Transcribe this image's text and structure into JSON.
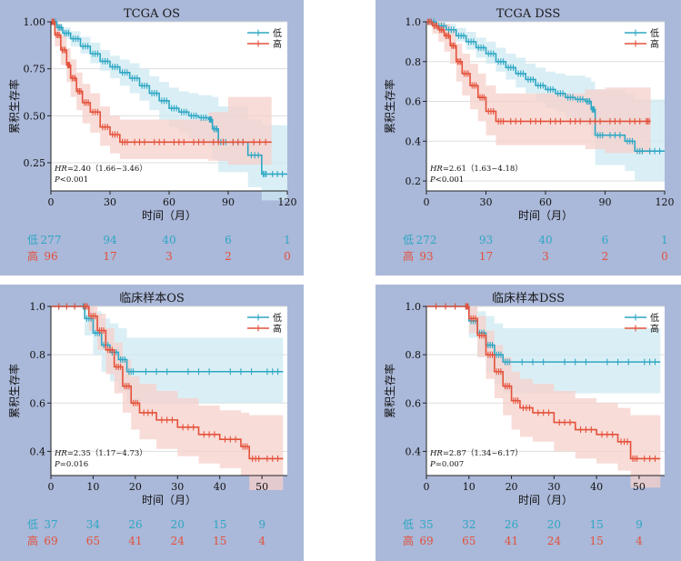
{
  "colors": {
    "low": "#2ea7c4",
    "high": "#e4513a",
    "low_band": "#cde9f2",
    "high_band": "#f6d0cb",
    "panel_bg": "#aab8d9"
  },
  "chart_data": [
    {
      "type": "line",
      "title": "TCGA OS",
      "ylabel": "累积生存率",
      "xlabel": "时间（月）",
      "xlim": [
        0,
        120
      ],
      "ylim": [
        0.1,
        1.0
      ],
      "xticks": [
        "0",
        "30",
        "60",
        "90",
        "120"
      ],
      "yticks": [
        "0.25",
        "0.50",
        "0.75",
        "1.00"
      ],
      "ytick_values": [
        0.25,
        0.5,
        0.75,
        1.0
      ],
      "xtick_values": [
        0,
        30,
        60,
        90,
        120
      ],
      "legend": [
        "低",
        "高"
      ],
      "legend_position": "top-right",
      "hr_label": "HR",
      "hr_text": "=2.40（1.66~3.46）",
      "p_label": "P",
      "p_text": "<0.001",
      "series": [
        {
          "name": "低",
          "x": [
            0,
            3,
            6,
            10,
            15,
            20,
            25,
            30,
            35,
            40,
            45,
            50,
            55,
            60,
            65,
            70,
            75,
            80,
            82,
            85,
            90,
            100,
            107,
            110,
            120
          ],
          "y": [
            1.0,
            0.97,
            0.94,
            0.91,
            0.87,
            0.83,
            0.79,
            0.76,
            0.73,
            0.7,
            0.66,
            0.62,
            0.58,
            0.54,
            0.52,
            0.5,
            0.49,
            0.48,
            0.43,
            0.36,
            0.36,
            0.29,
            0.19,
            0.19,
            0.19
          ],
          "lower": [
            1.0,
            0.95,
            0.91,
            0.87,
            0.83,
            0.78,
            0.74,
            0.7,
            0.66,
            0.62,
            0.58,
            0.53,
            0.48,
            0.44,
            0.41,
            0.38,
            0.36,
            0.34,
            0.27,
            0.2,
            0.2,
            0.12,
            0.05,
            0.05,
            0.05
          ],
          "upper": [
            1.0,
            0.99,
            0.97,
            0.95,
            0.92,
            0.89,
            0.85,
            0.82,
            0.8,
            0.78,
            0.75,
            0.71,
            0.68,
            0.65,
            0.63,
            0.62,
            0.61,
            0.61,
            0.6,
            0.55,
            0.55,
            0.48,
            0.45,
            0.45,
            0.45
          ]
        },
        {
          "name": "高",
          "x": [
            0,
            2,
            5,
            8,
            10,
            13,
            16,
            20,
            25,
            30,
            35,
            40,
            50,
            60,
            70,
            80,
            90,
            100,
            112
          ],
          "y": [
            1.0,
            0.93,
            0.85,
            0.77,
            0.7,
            0.63,
            0.57,
            0.52,
            0.44,
            0.4,
            0.36,
            0.36,
            0.36,
            0.36,
            0.36,
            0.36,
            0.36,
            0.36,
            0.36
          ],
          "lower": [
            1.0,
            0.87,
            0.77,
            0.68,
            0.6,
            0.53,
            0.46,
            0.41,
            0.34,
            0.3,
            0.27,
            0.27,
            0.27,
            0.27,
            0.27,
            0.26,
            0.24,
            0.24,
            0.24
          ],
          "upper": [
            1.0,
            0.99,
            0.93,
            0.86,
            0.8,
            0.73,
            0.67,
            0.62,
            0.55,
            0.5,
            0.48,
            0.48,
            0.48,
            0.48,
            0.48,
            0.52,
            0.6,
            0.6,
            0.6
          ]
        }
      ],
      "risk_table": {
        "low": [
          "277",
          "94",
          "40",
          "6",
          "1"
        ],
        "high": [
          "96",
          "17",
          "3",
          "2",
          "0"
        ]
      }
    },
    {
      "type": "line",
      "title": "TCGA DSS",
      "ylabel": "累积生存率",
      "xlabel": "时间（月）",
      "xlim": [
        0,
        120
      ],
      "ylim": [
        0.15,
        1.0
      ],
      "xticks": [
        "0",
        "30",
        "60",
        "90",
        "120"
      ],
      "yticks": [
        "0.2",
        "0.4",
        "0.6",
        "0.8",
        "1.0"
      ],
      "ytick_values": [
        0.2,
        0.4,
        0.6,
        0.8,
        1.0
      ],
      "xtick_values": [
        0,
        30,
        60,
        90,
        120
      ],
      "legend": [
        "低",
        "高"
      ],
      "legend_position": "top-right",
      "hr_label": "HR",
      "hr_text": "=2.61（1.63~4.18）",
      "p_label": "P",
      "p_text": "<0.001",
      "series": [
        {
          "name": "低",
          "x": [
            0,
            5,
            10,
            15,
            20,
            25,
            30,
            35,
            40,
            45,
            50,
            55,
            60,
            65,
            70,
            75,
            80,
            83,
            85,
            90,
            100,
            105,
            110,
            120
          ],
          "y": [
            1.0,
            0.98,
            0.96,
            0.93,
            0.9,
            0.87,
            0.84,
            0.8,
            0.77,
            0.74,
            0.71,
            0.68,
            0.66,
            0.64,
            0.62,
            0.61,
            0.6,
            0.56,
            0.43,
            0.43,
            0.4,
            0.35,
            0.35,
            0.35
          ],
          "lower": [
            1.0,
            0.96,
            0.93,
            0.9,
            0.86,
            0.82,
            0.79,
            0.75,
            0.71,
            0.67,
            0.64,
            0.6,
            0.57,
            0.55,
            0.52,
            0.5,
            0.48,
            0.42,
            0.28,
            0.28,
            0.25,
            0.2,
            0.2,
            0.2
          ],
          "upper": [
            1.0,
            1.0,
            0.99,
            0.97,
            0.95,
            0.92,
            0.9,
            0.87,
            0.84,
            0.82,
            0.79,
            0.77,
            0.75,
            0.74,
            0.73,
            0.73,
            0.72,
            0.7,
            0.66,
            0.66,
            0.64,
            0.61,
            0.61,
            0.61
          ]
        },
        {
          "name": "高",
          "x": [
            0,
            3,
            6,
            9,
            12,
            15,
            18,
            22,
            26,
            30,
            35,
            40,
            50,
            60,
            70,
            80,
            90,
            100,
            110,
            113
          ],
          "y": [
            1.0,
            0.98,
            0.96,
            0.93,
            0.88,
            0.8,
            0.74,
            0.68,
            0.62,
            0.55,
            0.5,
            0.5,
            0.5,
            0.5,
            0.5,
            0.5,
            0.5,
            0.5,
            0.5,
            0.5
          ],
          "lower": [
            1.0,
            0.94,
            0.9,
            0.85,
            0.79,
            0.7,
            0.63,
            0.56,
            0.5,
            0.43,
            0.38,
            0.38,
            0.38,
            0.38,
            0.38,
            0.36,
            0.34,
            0.34,
            0.34,
            0.34
          ],
          "upper": [
            1.0,
            1.0,
            1.0,
            0.99,
            0.96,
            0.89,
            0.84,
            0.79,
            0.74,
            0.68,
            0.64,
            0.64,
            0.64,
            0.64,
            0.64,
            0.66,
            0.67,
            0.67,
            0.67,
            0.67
          ]
        }
      ],
      "risk_table": {
        "low": [
          "272",
          "93",
          "40",
          "6",
          "1"
        ],
        "high": [
          "93",
          "17",
          "3",
          "2",
          "0"
        ]
      }
    },
    {
      "type": "line",
      "title": "临床样本OS",
      "ylabel": "累积生存率",
      "xlabel": "时间（月）",
      "xlim": [
        0,
        56
      ],
      "ylim": [
        0.3,
        1.0
      ],
      "xticks": [
        "0",
        "10",
        "20",
        "30",
        "40",
        "50"
      ],
      "yticks": [
        "0.4",
        "0.6",
        "0.8",
        "1.0"
      ],
      "ytick_values": [
        0.4,
        0.6,
        0.8,
        1.0
      ],
      "xtick_values": [
        0,
        10,
        20,
        30,
        40,
        50
      ],
      "legend": [
        "低",
        "高"
      ],
      "legend_position": "top-right",
      "hr_label": "HR",
      "hr_text": "=2.35（1.17~4.73）",
      "p_label": "P",
      "p_text": "=0.016",
      "series": [
        {
          "name": "低",
          "x": [
            0,
            7.5,
            8,
            10,
            12,
            14,
            16,
            18,
            20,
            30,
            40,
            50,
            55
          ],
          "y": [
            1.0,
            1.0,
            0.95,
            0.89,
            0.84,
            0.81,
            0.78,
            0.73,
            0.73,
            0.73,
            0.73,
            0.73,
            0.73
          ],
          "lower": [
            1.0,
            1.0,
            0.88,
            0.8,
            0.73,
            0.69,
            0.65,
            0.6,
            0.6,
            0.6,
            0.6,
            0.6,
            0.6
          ],
          "upper": [
            1.0,
            1.0,
            1.0,
            0.98,
            0.95,
            0.93,
            0.91,
            0.87,
            0.87,
            0.87,
            0.87,
            0.87,
            0.87
          ]
        },
        {
          "name": "高",
          "x": [
            0,
            7.5,
            9,
            11,
            13,
            15,
            17,
            19,
            21,
            25,
            30,
            35,
            40,
            45,
            47,
            50,
            55
          ],
          "y": [
            1.0,
            1.0,
            0.96,
            0.9,
            0.82,
            0.75,
            0.67,
            0.6,
            0.56,
            0.53,
            0.5,
            0.47,
            0.45,
            0.42,
            0.37,
            0.37,
            0.37
          ],
          "lower": [
            1.0,
            1.0,
            0.9,
            0.82,
            0.72,
            0.64,
            0.56,
            0.49,
            0.45,
            0.41,
            0.38,
            0.35,
            0.33,
            0.3,
            0.24,
            0.24,
            0.24
          ],
          "upper": [
            1.0,
            1.0,
            1.0,
            0.97,
            0.91,
            0.85,
            0.78,
            0.71,
            0.68,
            0.65,
            0.62,
            0.59,
            0.57,
            0.56,
            0.55,
            0.55,
            0.55
          ]
        }
      ],
      "risk_table": {
        "low": [
          "37",
          "34",
          "26",
          "20",
          "15",
          "9"
        ],
        "high": [
          "69",
          "65",
          "41",
          "24",
          "15",
          "4"
        ]
      }
    },
    {
      "type": "line",
      "title": "临床样本DSS",
      "ylabel": "累积生存率",
      "xlabel": "时间（月）",
      "xlim": [
        0,
        56
      ],
      "ylim": [
        0.3,
        1.0
      ],
      "xticks": [
        "0",
        "10",
        "20",
        "30",
        "40",
        "50"
      ],
      "yticks": [
        "0.4",
        "0.6",
        "0.8",
        "1.0"
      ],
      "ytick_values": [
        0.4,
        0.6,
        0.8,
        1.0
      ],
      "xtick_values": [
        0,
        10,
        20,
        30,
        40,
        50
      ],
      "legend": [
        "低",
        "高"
      ],
      "legend_position": "top-right",
      "hr_label": "HR",
      "hr_text": "=2.87（1.34~6.17）",
      "p_label": "P",
      "p_text": "=0.007",
      "series": [
        {
          "name": "低",
          "x": [
            0,
            9,
            10,
            12,
            14,
            16,
            18,
            20,
            30,
            40,
            50,
            55
          ],
          "y": [
            1.0,
            1.0,
            0.94,
            0.89,
            0.84,
            0.8,
            0.77,
            0.77,
            0.77,
            0.77,
            0.77,
            0.77
          ],
          "lower": [
            1.0,
            1.0,
            0.87,
            0.79,
            0.73,
            0.68,
            0.64,
            0.64,
            0.64,
            0.64,
            0.64,
            0.64
          ],
          "upper": [
            1.0,
            1.0,
            1.0,
            0.98,
            0.96,
            0.93,
            0.91,
            0.91,
            0.91,
            0.91,
            0.91,
            0.91
          ]
        },
        {
          "name": "高",
          "x": [
            0,
            9,
            10,
            12,
            14,
            16,
            18,
            20,
            22,
            25,
            30,
            35,
            40,
            45,
            48,
            50,
            55
          ],
          "y": [
            1.0,
            1.0,
            0.95,
            0.88,
            0.8,
            0.73,
            0.67,
            0.61,
            0.58,
            0.56,
            0.52,
            0.49,
            0.47,
            0.44,
            0.37,
            0.37,
            0.37
          ],
          "lower": [
            1.0,
            1.0,
            0.89,
            0.79,
            0.7,
            0.62,
            0.55,
            0.49,
            0.46,
            0.44,
            0.4,
            0.37,
            0.35,
            0.32,
            0.25,
            0.25,
            0.25
          ],
          "upper": [
            1.0,
            1.0,
            1.0,
            0.96,
            0.9,
            0.84,
            0.79,
            0.73,
            0.7,
            0.68,
            0.65,
            0.62,
            0.6,
            0.58,
            0.55,
            0.55,
            0.55
          ]
        }
      ],
      "risk_table": {
        "low": [
          "35",
          "32",
          "26",
          "20",
          "15",
          "9"
        ],
        "high": [
          "69",
          "65",
          "41",
          "24",
          "15",
          "4"
        ]
      }
    }
  ]
}
